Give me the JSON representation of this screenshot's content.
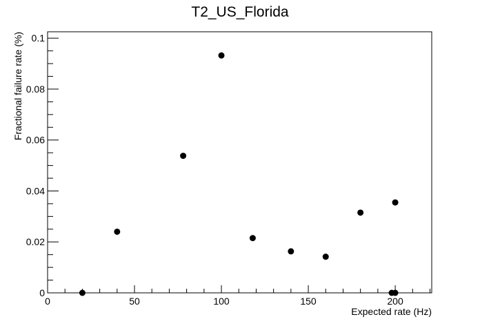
{
  "chart_data": {
    "type": "scatter",
    "title": "T2_US_Florida",
    "xlabel": "Expected rate (Hz)",
    "ylabel": "Fractional failure rate (%)",
    "xlim": [
      0,
      221
    ],
    "ylim": [
      0,
      0.1025
    ],
    "grid": false,
    "x_ticks": [
      0,
      50,
      100,
      150,
      200
    ],
    "x_tick_labels": [
      "0",
      "50",
      "100",
      "150",
      "200"
    ],
    "x_minor_step": 10,
    "y_ticks": [
      0,
      0.02,
      0.04,
      0.06,
      0.08,
      0.1
    ],
    "y_tick_labels": [
      "0",
      "0.02",
      "0.04",
      "0.06",
      "0.08",
      "0.1"
    ],
    "y_minor_step": 0.005,
    "series": [
      {
        "x": [
          20,
          40,
          78,
          100,
          118,
          140,
          160,
          180,
          198,
          200,
          200
        ],
        "y": [
          0.0,
          0.024,
          0.0538,
          0.0932,
          0.0215,
          0.0163,
          0.0142,
          0.0315,
          0.0,
          0.0,
          0.0355
        ]
      }
    ]
  }
}
